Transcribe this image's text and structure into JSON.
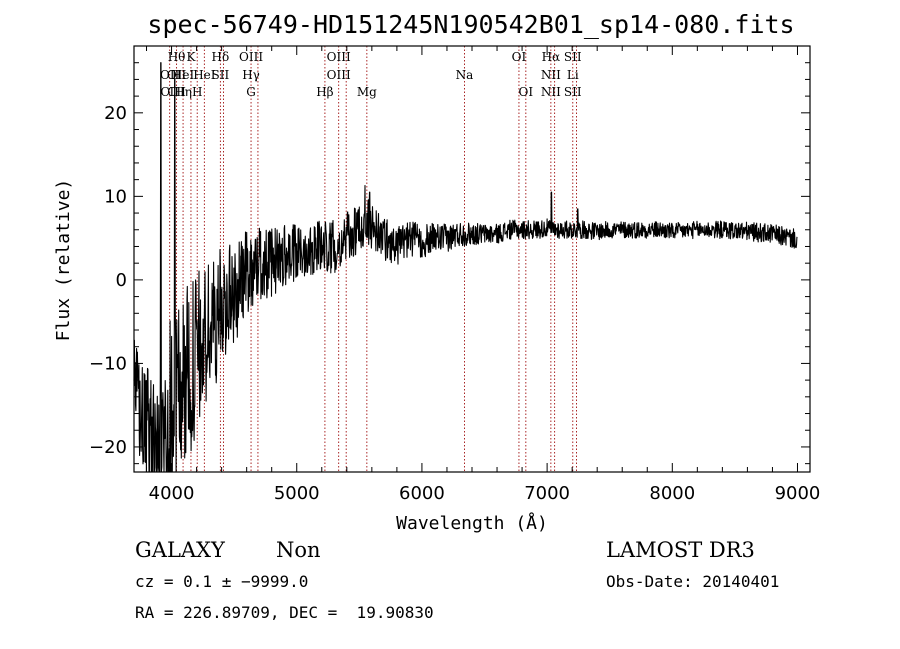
{
  "chart_data": {
    "type": "line",
    "title": "spec-56749-HD151245N190542B01_sp14-080.fits",
    "xlabel": "Wavelength (Å)",
    "ylabel": "Flux (relative)",
    "xlim": [
      3700,
      9100
    ],
    "ylim": [
      -23,
      28
    ],
    "xticks": [
      4000,
      5000,
      6000,
      7000,
      8000,
      9000
    ],
    "yticks": [
      -20,
      -10,
      0,
      10,
      20
    ],
    "xtick_labels": [
      "4000",
      "5000",
      "6000",
      "7000",
      "8000",
      "9000"
    ],
    "ytick_labels": [
      "−20",
      "−10",
      "0",
      "10",
      "20"
    ],
    "line_color": "#000000",
    "marker_color": "#a01010",
    "anchors": [
      [
        3700,
        -12
      ],
      [
        3740,
        -15
      ],
      [
        3780,
        -18
      ],
      [
        3820,
        -18
      ],
      [
        3860,
        -20
      ],
      [
        3900,
        -21
      ],
      [
        3940,
        -19
      ],
      [
        3980,
        -16
      ],
      [
        4020,
        -15
      ],
      [
        4060,
        -13
      ],
      [
        4100,
        -12
      ],
      [
        4150,
        -11
      ],
      [
        4200,
        -9
      ],
      [
        4250,
        -8
      ],
      [
        4300,
        -6
      ],
      [
        4350,
        -5
      ],
      [
        4400,
        -3
      ],
      [
        4450,
        -2
      ],
      [
        4500,
        -2
      ],
      [
        4600,
        1
      ],
      [
        4700,
        2
      ],
      [
        4800,
        2
      ],
      [
        4900,
        3
      ],
      [
        5000,
        3
      ],
      [
        5100,
        4
      ],
      [
        5200,
        4
      ],
      [
        5300,
        4
      ],
      [
        5400,
        5
      ],
      [
        5500,
        6
      ],
      [
        5560,
        7
      ],
      [
        5700,
        5
      ],
      [
        5800,
        4
      ],
      [
        5900,
        5
      ],
      [
        6000,
        4.5
      ],
      [
        6100,
        5
      ],
      [
        6200,
        5
      ],
      [
        6300,
        5.5
      ],
      [
        6400,
        5.5
      ],
      [
        6500,
        5.5
      ],
      [
        6600,
        5.5
      ],
      [
        6700,
        6
      ],
      [
        6800,
        6
      ],
      [
        6900,
        6
      ],
      [
        7000,
        6.2
      ],
      [
        7100,
        6
      ],
      [
        7200,
        6
      ],
      [
        7300,
        6
      ],
      [
        7400,
        5.8
      ],
      [
        7500,
        6
      ],
      [
        7600,
        6
      ],
      [
        7700,
        6
      ],
      [
        7800,
        6
      ],
      [
        7900,
        6
      ],
      [
        8000,
        5.8
      ],
      [
        8200,
        6
      ],
      [
        8400,
        6
      ],
      [
        8600,
        5.8
      ],
      [
        8800,
        5.5
      ],
      [
        8950,
        5
      ],
      [
        9000,
        4.8
      ]
    ],
    "noise": [
      [
        3700,
        5
      ],
      [
        4000,
        12
      ],
      [
        4200,
        10
      ],
      [
        4400,
        7
      ],
      [
        4600,
        5
      ],
      [
        5000,
        3.5
      ],
      [
        5500,
        3
      ],
      [
        6000,
        2
      ],
      [
        6500,
        1.2
      ],
      [
        7000,
        1.1
      ],
      [
        8000,
        1
      ],
      [
        9000,
        1.2
      ]
    ],
    "spikes": [
      [
        3915,
        26
      ],
      [
        4025,
        24
      ],
      [
        5545,
        11.3
      ],
      [
        5583,
        10.5
      ],
      [
        7035,
        10.5
      ],
      [
        7245,
        8.5
      ]
    ],
    "spectral_lines": [
      {
        "x": 3985,
        "labels": [
          null,
          "OII",
          "CII"
        ]
      },
      {
        "x": 4040,
        "labels": [
          "Hθ",
          "OII",
          "CII"
        ]
      },
      {
        "x": 4092,
        "labels": [
          null,
          "HeI",
          "Hη"
        ]
      },
      {
        "x": 4155,
        "labels": [
          "K",
          null,
          null
        ]
      },
      {
        "x": 4205,
        "labels": [
          null,
          null,
          "H"
        ]
      },
      {
        "x": 4262,
        "labels": [
          null,
          "HeI",
          null
        ]
      },
      {
        "x": 4390,
        "labels": [
          "Hδ",
          "SII",
          null
        ]
      },
      {
        "x": 4415,
        "labels": [
          null,
          null,
          null
        ]
      },
      {
        "x": 4635,
        "labels": [
          "OIII",
          "Hγ",
          "G"
        ]
      },
      {
        "x": 4690,
        "labels": [
          null,
          null,
          null
        ]
      },
      {
        "x": 5225,
        "labels": [
          null,
          null,
          "Hβ"
        ]
      },
      {
        "x": 5335,
        "labels": [
          "OIII",
          "OIII",
          null
        ]
      },
      {
        "x": 5395,
        "labels": [
          null,
          null,
          null
        ]
      },
      {
        "x": 5560,
        "labels": [
          null,
          null,
          "Mg"
        ]
      },
      {
        "x": 6340,
        "labels": [
          null,
          "Na",
          null
        ]
      },
      {
        "x": 6775,
        "labels": [
          "OI",
          null,
          null
        ]
      },
      {
        "x": 6830,
        "labels": [
          null,
          null,
          "OI"
        ]
      },
      {
        "x": 7030,
        "labels": [
          "Hα",
          "NII",
          "NII"
        ]
      },
      {
        "x": 7060,
        "labels": [
          null,
          null,
          null
        ]
      },
      {
        "x": 7205,
        "labels": [
          "SII",
          "Li",
          "SII"
        ]
      },
      {
        "x": 7235,
        "labels": [
          null,
          null,
          null
        ]
      }
    ]
  },
  "footer": {
    "class_label": "GALAXY",
    "subclass_label": "Non",
    "cz_text": "cz = 0.1 ± −9999.0",
    "coords_text": "RA = 226.89709, DEC =  19.90830",
    "survey_label": "LAMOST DR3",
    "obs_date_text": "Obs-Date: 20140401"
  }
}
